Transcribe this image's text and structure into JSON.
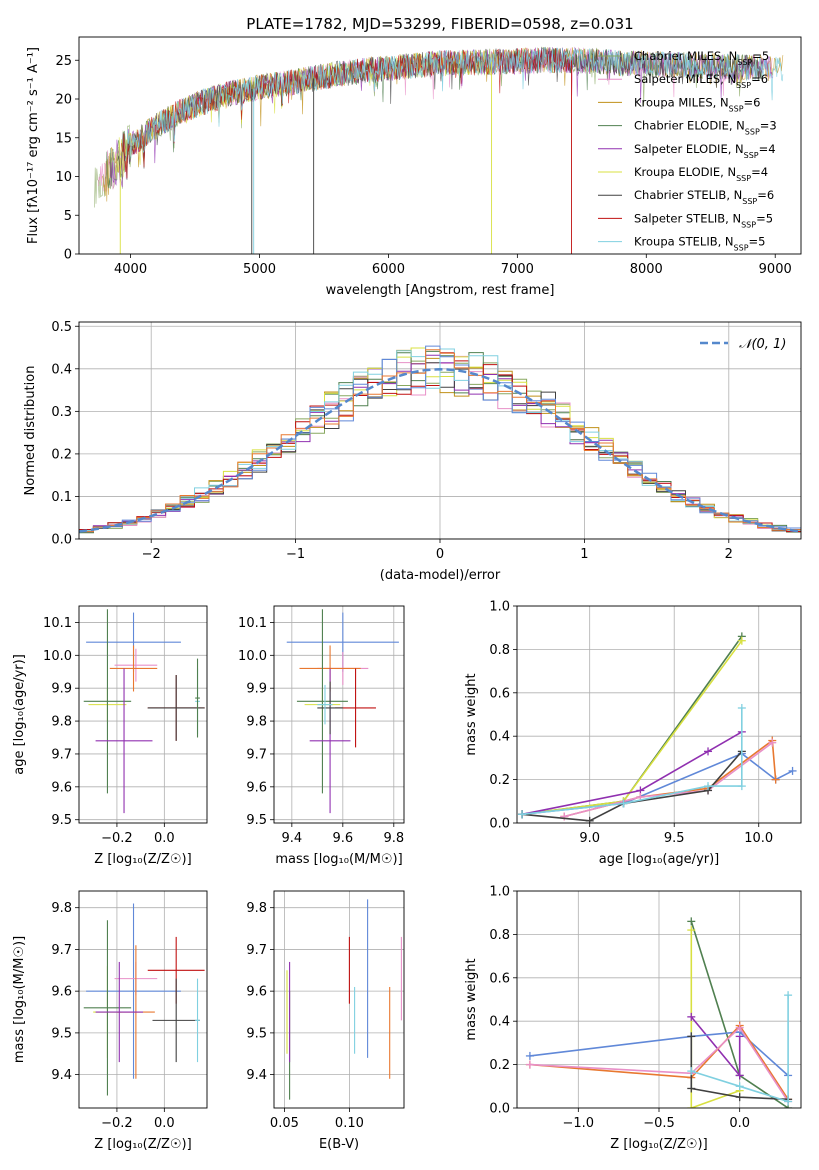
{
  "figure_title": "PLATE=1782, MJD=53299, FIBERID=0598, z=0.031",
  "colors": {
    "Chabrier MILES": "#88a860",
    "Salpeter MILES": "#e890c8",
    "Kroupa MILES": "#c09018",
    "Chabrier ELODIE": "#508050",
    "Salpeter ELODIE": "#9030b0",
    "Kroupa ELODIE": "#d8e040",
    "Chabrier STELIB": "#404040",
    "Salpeter STELIB": "#c01010",
    "Kroupa STELIB": "#80d0e0",
    "blue": "#6088d8",
    "orange": "#e87830"
  },
  "chart_data": [
    {
      "id": "spectrum",
      "type": "line",
      "title": "PLATE=1782, MJD=53299, FIBERID=0598, z=0.031",
      "xlabel": "wavelength [Angstrom, rest frame]",
      "ylabel": "Flux [fλ10⁻¹⁷ erg cm⁻² s⁻¹ A⁻¹]",
      "xlim": [
        3600,
        9200
      ],
      "ylim": [
        0,
        28
      ],
      "xticks": [
        4000,
        5000,
        6000,
        7000,
        8000,
        9000
      ],
      "yticks": [
        0,
        5,
        10,
        15,
        20,
        25
      ],
      "legend_position": "top-right",
      "legend": [
        {
          "name": "Chabrier MILES",
          "nssp": "5"
        },
        {
          "name": "Salpeter MILES",
          "nssp": "6"
        },
        {
          "name": "Kroupa MILES",
          "nssp": "6"
        },
        {
          "name": "Chabrier ELODIE",
          "nssp": "3"
        },
        {
          "name": "Salpeter ELODIE",
          "nssp": "4"
        },
        {
          "name": "Kroupa ELODIE",
          "nssp": "4"
        },
        {
          "name": "Chabrier STELIB",
          "nssp": "6"
        },
        {
          "name": "Salpeter STELIB",
          "nssp": "5"
        },
        {
          "name": "Kroupa STELIB",
          "nssp": "5"
        }
      ],
      "continuum": [
        [
          3720,
          9
        ],
        [
          3800,
          10
        ],
        [
          3900,
          12
        ],
        [
          4000,
          14
        ],
        [
          4200,
          16.5
        ],
        [
          4400,
          18.5
        ],
        [
          4600,
          19.8
        ],
        [
          4800,
          20.8
        ],
        [
          5000,
          21.5
        ],
        [
          5200,
          22
        ],
        [
          5400,
          22.6
        ],
        [
          5600,
          23.2
        ],
        [
          5800,
          23.6
        ],
        [
          6000,
          24
        ],
        [
          6200,
          24.3
        ],
        [
          6400,
          24.6
        ],
        [
          6600,
          24.7
        ],
        [
          6800,
          24.8
        ],
        [
          7000,
          24.9
        ],
        [
          7200,
          25
        ],
        [
          7400,
          25
        ],
        [
          7600,
          24.9
        ],
        [
          7800,
          24.6
        ],
        [
          8000,
          24.5
        ],
        [
          8200,
          24.4
        ],
        [
          8400,
          24.3
        ],
        [
          8600,
          24.2
        ],
        [
          8800,
          24
        ],
        [
          9000,
          24
        ],
        [
          9200,
          24
        ]
      ],
      "absorption_dips": [
        [
          3934,
          2
        ],
        [
          3969,
          2
        ],
        [
          4102,
          4
        ],
        [
          4340,
          4
        ],
        [
          4861,
          4
        ],
        [
          5175,
          3
        ],
        [
          5890,
          3
        ],
        [
          6563,
          2
        ],
        [
          8500,
          2
        ],
        [
          8542,
          2
        ],
        [
          8662,
          2
        ]
      ],
      "spikes_to_zero": [
        [
          3920,
          "Kroupa ELODIE"
        ],
        [
          4940,
          "Chabrier STELIB"
        ],
        [
          4955,
          "Kroupa STELIB"
        ],
        [
          5420,
          "Chabrier STELIB"
        ],
        [
          6800,
          "Kroupa ELODIE"
        ],
        [
          7420,
          "Salpeter STELIB"
        ]
      ]
    },
    {
      "id": "residuals",
      "type": "histogram",
      "xlabel": "(data-model)/error",
      "ylabel": "Normed distribution",
      "xlim": [
        -2.5,
        2.5
      ],
      "ylim": [
        0,
        0.51
      ],
      "xticks": [
        -2,
        -1,
        0,
        1,
        2
      ],
      "yticks": [
        0.0,
        0.1,
        0.2,
        0.3,
        0.4,
        0.5
      ],
      "grid": true,
      "legend_position": "top-right",
      "reference_curve": {
        "name": "𝒩(0, 1)",
        "mean": 0,
        "sigma": 1
      },
      "bin_width": 0.1,
      "series_order": [
        "Chabrier MILES",
        "Salpeter MILES",
        "Kroupa MILES",
        "Chabrier ELODIE",
        "Salpeter ELODIE",
        "Kroupa ELODIE",
        "Chabrier STELIB",
        "Salpeter STELIB",
        "Kroupa STELIB",
        "blue",
        "orange"
      ]
    },
    {
      "id": "age_vs_Z",
      "type": "errorbar",
      "xlabel": "Z [log₁₀(Z/Z☉)]",
      "ylabel": "age  [log₁₀(age/yr)]",
      "xlim": [
        -0.36,
        0.18
      ],
      "ylim": [
        9.49,
        10.15
      ],
      "xticks": [
        -0.2,
        0.0
      ],
      "yticks": [
        9.5,
        9.6,
        9.7,
        9.8,
        9.9,
        10.0,
        10.1
      ],
      "grid": true,
      "points": [
        {
          "s": "blue",
          "x": -0.13,
          "xe": 0.2,
          "y": 10.04,
          "ye": 0.09
        },
        {
          "s": "Salpeter MILES",
          "x": -0.12,
          "xe": 0.09,
          "y": 9.97,
          "ye": 0.05
        },
        {
          "s": "orange",
          "x": -0.13,
          "xe": 0.1,
          "y": 9.96,
          "ye": 0.07
        },
        {
          "s": "Kroupa ELODIE",
          "x": -0.24,
          "xe": 0.08,
          "y": 9.85,
          "ye": 0.05
        },
        {
          "s": "Chabrier ELODIE",
          "x": -0.24,
          "xe": 0.1,
          "y": 9.86,
          "ye": 0.28
        },
        {
          "s": "Salpeter ELODIE",
          "x": -0.17,
          "xe": 0.12,
          "y": 9.74,
          "ye": 0.22
        },
        {
          "s": "Salpeter STELIB",
          "x": 0.05,
          "xe": 0.12,
          "y": 9.84,
          "ye": 0.1
        },
        {
          "s": "Chabrier STELIB",
          "x": 0.05,
          "xe": 0.12,
          "y": 9.84,
          "ye": 0.1
        },
        {
          "s": "Kroupa STELIB",
          "x": 0.14,
          "xe": 0.01,
          "y": 9.86,
          "ye": 0.1
        },
        {
          "s": "Chabrier ELODIE",
          "x": 0.14,
          "xe": 0.01,
          "y": 9.87,
          "ye": 0.12
        }
      ]
    },
    {
      "id": "age_vs_mass",
      "type": "errorbar",
      "xlabel": "mass [log₁₀(M/M☉)]",
      "ylabel": "",
      "xlim": [
        9.33,
        9.84
      ],
      "ylim": [
        9.49,
        10.15
      ],
      "xticks": [
        9.4,
        9.6,
        9.8
      ],
      "yticks": [
        9.5,
        9.6,
        9.7,
        9.8,
        9.9,
        10.0,
        10.1
      ],
      "grid": true,
      "points": [
        {
          "s": "blue",
          "x": 9.6,
          "xe": 0.22,
          "y": 10.04,
          "ye": 0.09
        },
        {
          "s": "Salpeter MILES",
          "x": 9.6,
          "xe": 0.1,
          "y": 9.96,
          "ye": 0.05
        },
        {
          "s": "orange",
          "x": 9.55,
          "xe": 0.12,
          "y": 9.96,
          "ye": 0.07
        },
        {
          "s": "Kroupa ELODIE",
          "x": 9.52,
          "xe": 0.07,
          "y": 9.85,
          "ye": 0.05
        },
        {
          "s": "Chabrier ELODIE",
          "x": 9.52,
          "xe": 0.1,
          "y": 9.86,
          "ye": 0.28
        },
        {
          "s": "Salpeter ELODIE",
          "x": 9.55,
          "xe": 0.08,
          "y": 9.74,
          "ye": 0.22
        },
        {
          "s": "Salpeter STELIB",
          "x": 9.65,
          "xe": 0.08,
          "y": 9.84,
          "ye": 0.12
        },
        {
          "s": "Chabrier STELIB",
          "x": 9.55,
          "xe": 0.05,
          "y": 9.84,
          "ye": 0.08
        },
        {
          "s": "Kroupa STELIB",
          "x": 9.53,
          "xe": 0.03,
          "y": 9.85,
          "ye": 0.06
        }
      ]
    },
    {
      "id": "weight_vs_age",
      "type": "line",
      "xlabel": "age  [log₁₀(age/yr)]",
      "ylabel": "mass weight",
      "xlim": [
        8.57,
        10.25
      ],
      "ylim": [
        0.0,
        1.0
      ],
      "xticks": [
        9.0,
        9.5,
        10.0
      ],
      "yticks": [
        0.0,
        0.2,
        0.4,
        0.6,
        0.8,
        1.0
      ],
      "grid": true,
      "series": [
        {
          "s": "Chabrier ELODIE",
          "x": [
            8.6,
            9.2,
            9.9
          ],
          "y": [
            0.04,
            0.1,
            0.86
          ]
        },
        {
          "s": "Kroupa ELODIE",
          "x": [
            8.6,
            9.2,
            9.9
          ],
          "y": [
            0.04,
            0.1,
            0.84
          ]
        },
        {
          "s": "Salpeter ELODIE",
          "x": [
            8.6,
            9.3,
            9.7,
            9.9
          ],
          "y": [
            0.04,
            0.15,
            0.33,
            0.42
          ]
        },
        {
          "s": "blue",
          "x": [
            8.6,
            9.2,
            9.9,
            10.1,
            10.2
          ],
          "y": [
            0.04,
            0.09,
            0.32,
            0.2,
            0.24
          ]
        },
        {
          "s": "orange",
          "x": [
            8.85,
            9.3,
            9.7,
            10.08,
            10.1
          ],
          "y": [
            0.03,
            0.12,
            0.16,
            0.38,
            0.2
          ]
        },
        {
          "s": "Salpeter MILES",
          "x": [
            8.85,
            9.3,
            9.7,
            10.08
          ],
          "y": [
            0.03,
            0.12,
            0.15,
            0.37
          ]
        },
        {
          "s": "Chabrier STELIB",
          "x": [
            8.6,
            9.0,
            9.2,
            9.7,
            9.9
          ],
          "y": [
            0.04,
            0.01,
            0.09,
            0.15,
            0.33
          ]
        },
        {
          "s": "Kroupa STELIB",
          "x": [
            8.6,
            9.2,
            9.7,
            9.9,
            9.9
          ],
          "y": [
            0.04,
            0.09,
            0.17,
            0.17,
            0.53
          ]
        }
      ]
    },
    {
      "id": "mass_vs_Z",
      "type": "errorbar",
      "xlabel": "Z [log₁₀(Z/Z☉)]",
      "ylabel": "mass [log₁₀(M/M☉)]",
      "xlim": [
        -0.36,
        0.18
      ],
      "ylim": [
        9.32,
        9.84
      ],
      "xticks": [
        -0.2,
        0.0
      ],
      "yticks": [
        9.4,
        9.5,
        9.6,
        9.7,
        9.8
      ],
      "grid": true,
      "points": [
        {
          "s": "blue",
          "x": -0.13,
          "xe": 0.2,
          "y": 9.6,
          "ye": 0.21
        },
        {
          "s": "Salpeter MILES",
          "x": -0.12,
          "xe": 0.09,
          "y": 9.63,
          "ye": 0.04
        },
        {
          "s": "orange",
          "x": -0.12,
          "xe": 0.08,
          "y": 9.55,
          "ye": 0.16
        },
        {
          "s": "Kroupa ELODIE",
          "x": -0.24,
          "xe": 0.06,
          "y": 9.55,
          "ye": 0.11
        },
        {
          "s": "Chabrier ELODIE",
          "x": -0.24,
          "xe": 0.1,
          "y": 9.56,
          "ye": 0.21
        },
        {
          "s": "Salpeter ELODIE",
          "x": -0.19,
          "xe": 0.1,
          "y": 9.55,
          "ye": 0.12
        },
        {
          "s": "Salpeter STELIB",
          "x": 0.05,
          "xe": 0.12,
          "y": 9.65,
          "ye": 0.08
        },
        {
          "s": "Chabrier STELIB",
          "x": 0.05,
          "xe": 0.1,
          "y": 9.53,
          "ye": 0.1
        },
        {
          "s": "Kroupa STELIB",
          "x": 0.14,
          "xe": 0.01,
          "y": 9.53,
          "ye": 0.1
        }
      ]
    },
    {
      "id": "mass_vs_ebv",
      "type": "errorbar",
      "xlabel": "E(B-V)",
      "ylabel": "",
      "xlim": [
        0.042,
        0.142
      ],
      "ylim": [
        9.32,
        9.84
      ],
      "xticks": [
        0.05,
        0.1
      ],
      "yticks": [
        9.4,
        9.5,
        9.6,
        9.7,
        9.8
      ],
      "grid": true,
      "points": [
        {
          "s": "Chabrier ELODIE",
          "x": 0.054,
          "xe": 0,
          "y": 9.47,
          "ye": 0.13
        },
        {
          "s": "Salpeter ELODIE",
          "x": 0.054,
          "xe": 0,
          "y": 9.55,
          "ye": 0.12
        },
        {
          "s": "Kroupa ELODIE",
          "x": 0.052,
          "xe": 0,
          "y": 9.55,
          "ye": 0.1
        },
        {
          "s": "Salpeter STELIB",
          "x": 0.1,
          "xe": 0,
          "y": 9.65,
          "ye": 0.08
        },
        {
          "s": "Kroupa STELIB",
          "x": 0.104,
          "xe": 0,
          "y": 9.53,
          "ye": 0.08
        },
        {
          "s": "blue",
          "x": 0.114,
          "xe": 0,
          "y": 9.63,
          "ye": 0.19
        },
        {
          "s": "orange",
          "x": 0.131,
          "xe": 0,
          "y": 9.5,
          "ye": 0.11
        },
        {
          "s": "Salpeter MILES",
          "x": 0.14,
          "xe": 0,
          "y": 9.63,
          "ye": 0.1
        }
      ]
    },
    {
      "id": "weight_vs_Z",
      "type": "line",
      "xlabel": "Z [log₁₀(Z/Z☉)]",
      "ylabel": "mass weight",
      "xlim": [
        -1.38,
        0.38
      ],
      "ylim": [
        0.0,
        1.0
      ],
      "xticks": [
        -1.0,
        -0.5,
        0.0
      ],
      "yticks": [
        0.0,
        0.2,
        0.4,
        0.6,
        0.8,
        1.0
      ],
      "grid": true,
      "series": [
        {
          "s": "Chabrier ELODIE",
          "x": [
            -0.3,
            0.0,
            0.3
          ],
          "y": [
            0.86,
            0.15,
            0.0
          ]
        },
        {
          "s": "Kroupa ELODIE",
          "x": [
            -0.3,
            -0.3,
            0.0
          ],
          "y": [
            0.82,
            0.0,
            0.08
          ]
        },
        {
          "s": "Salpeter ELODIE",
          "x": [
            -0.3,
            0.0,
            0.0
          ],
          "y": [
            0.42,
            0.15,
            0.33
          ]
        },
        {
          "s": "blue",
          "x": [
            -1.3,
            -0.3,
            0.0,
            0.3
          ],
          "y": [
            0.24,
            0.33,
            0.35,
            0.15
          ]
        },
        {
          "s": "orange",
          "x": [
            -1.3,
            -0.3,
            0.0,
            0.3
          ],
          "y": [
            0.2,
            0.14,
            0.38,
            0.04
          ]
        },
        {
          "s": "Salpeter MILES",
          "x": [
            -1.3,
            -0.3,
            0.0,
            0.3
          ],
          "y": [
            0.2,
            0.16,
            0.37,
            0.03
          ]
        },
        {
          "s": "Chabrier STELIB",
          "x": [
            -0.3,
            -0.3,
            0.0,
            0.3
          ],
          "y": [
            0.33,
            0.09,
            0.05,
            0.04
          ]
        },
        {
          "s": "Kroupa STELIB",
          "x": [
            -0.3,
            0.0,
            0.3,
            0.3
          ],
          "y": [
            0.17,
            0.1,
            0.03,
            0.52
          ]
        }
      ]
    }
  ]
}
